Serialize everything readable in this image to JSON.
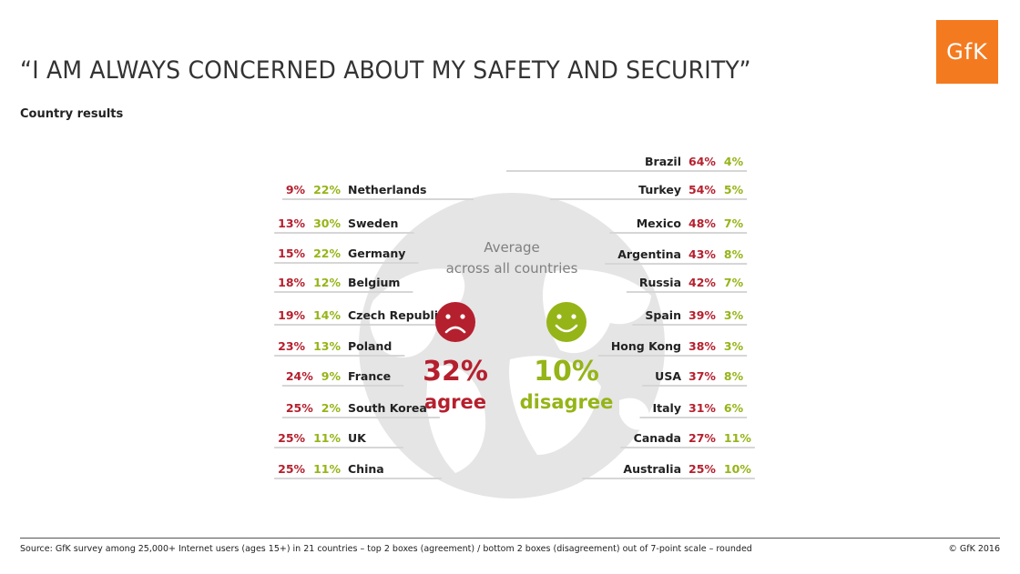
{
  "header": {
    "title": "“I AM ALWAYS CONCERNED ABOUT MY SAFETY AND SECURITY”",
    "subtitle": "Country results",
    "logo_text": "GfK"
  },
  "colors": {
    "agree": "#b5202e",
    "disagree": "#95b417",
    "globe": "#e5e5e5",
    "average_text": "#808080",
    "brand": "#f47a20"
  },
  "chart_data": {
    "type": "table",
    "series": [
      {
        "name": "agree",
        "unit": "%"
      },
      {
        "name": "disagree",
        "unit": "%"
      }
    ],
    "average": {
      "label_line1": "Average",
      "label_line2": "across all countries",
      "agree_value": "32%",
      "agree_label": "agree",
      "disagree_value": "10%",
      "disagree_label": "disagree",
      "agree_icon": "sad-face-icon",
      "disagree_icon": "happy-face-icon"
    },
    "left_countries": [
      {
        "country": "Netherlands",
        "agree": 9,
        "disagree": 22
      },
      {
        "country": "Sweden",
        "agree": 13,
        "disagree": 30
      },
      {
        "country": "Germany",
        "agree": 15,
        "disagree": 22
      },
      {
        "country": "Belgium",
        "agree": 18,
        "disagree": 12
      },
      {
        "country": "Czech Republic",
        "agree": 19,
        "disagree": 14
      },
      {
        "country": "Poland",
        "agree": 23,
        "disagree": 13
      },
      {
        "country": "France",
        "agree": 24,
        "disagree": 9
      },
      {
        "country": "South Korea",
        "agree": 25,
        "disagree": 2
      },
      {
        "country": "UK",
        "agree": 25,
        "disagree": 11
      },
      {
        "country": "China",
        "agree": 25,
        "disagree": 11
      }
    ],
    "right_countries": [
      {
        "country": "Brazil",
        "agree": 64,
        "disagree": 4
      },
      {
        "country": "Turkey",
        "agree": 54,
        "disagree": 5
      },
      {
        "country": "Mexico",
        "agree": 48,
        "disagree": 7
      },
      {
        "country": "Argentina",
        "agree": 43,
        "disagree": 8
      },
      {
        "country": "Russia",
        "agree": 42,
        "disagree": 7
      },
      {
        "country": "Spain",
        "agree": 39,
        "disagree": 3
      },
      {
        "country": "Hong Kong",
        "agree": 38,
        "disagree": 3
      },
      {
        "country": "USA",
        "agree": 37,
        "disagree": 8
      },
      {
        "country": "Italy",
        "agree": 31,
        "disagree": 6
      },
      {
        "country": "Canada",
        "agree": 27,
        "disagree": 11
      },
      {
        "country": "Australia",
        "agree": 25,
        "disagree": 10
      }
    ]
  },
  "footer": {
    "source": "Source: GfK survey among 25,000+ Internet users (ages 15+) in 21 countries – top 2 boxes (agreement) / bottom 2 boxes (disagreement) out of 7-point scale – rounded",
    "copyright": "© GfK 2016"
  }
}
